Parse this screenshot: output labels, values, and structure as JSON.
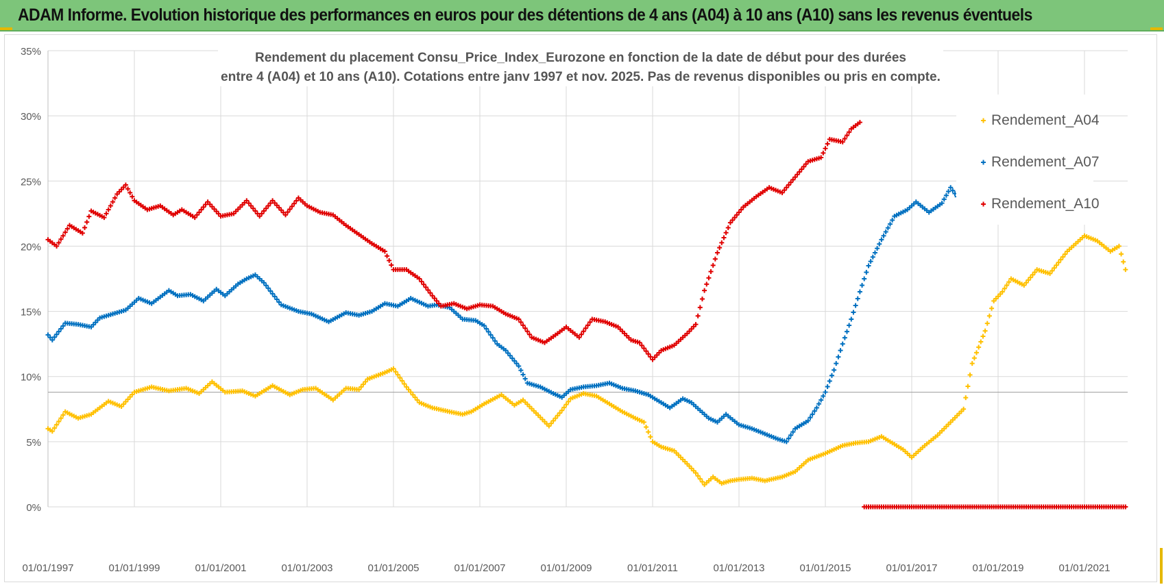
{
  "header": {
    "title": "ADAM Informe. Evolution historique des performances en euros pour des détentions de 4 ans (A04) à 10 ans (A10) sans les revenus éventuels",
    "background": "#7dc57a"
  },
  "chart_data": {
    "type": "scatter",
    "title_lines": [
      "Rendement du placement Consu_Price_Index_Eurozone en fonction de la date de début pour des durées",
      "entre 4 (A04) et 10 ans (A10). Cotations entre janv 1997 et nov. 2025. Pas de revenus disponibles ou pris en compte."
    ],
    "xlabel": "",
    "ylabel": "",
    "xlim": [
      1997.0,
      2022.0
    ],
    "ylim": [
      0,
      35
    ],
    "grid": true,
    "legend_position": "top-right",
    "x_ticks": [
      1997,
      1999,
      2001,
      2003,
      2005,
      2007,
      2009,
      2011,
      2013,
      2015,
      2017,
      2019,
      2021
    ],
    "x_tick_labels": [
      "01/01/1997",
      "01/01/1999",
      "01/01/2001",
      "01/01/2003",
      "01/01/2005",
      "01/01/2007",
      "01/01/2009",
      "01/01/2011",
      "01/01/2013",
      "01/01/2015",
      "01/01/2017",
      "01/01/2019",
      "01/01/2021"
    ],
    "y_ticks": [
      0,
      5,
      10,
      15,
      20,
      25,
      30,
      35
    ],
    "y_tick_labels": [
      "0%",
      "5%",
      "10%",
      "15%",
      "20%",
      "25%",
      "30%",
      "35%"
    ],
    "reference_line_y": 8.8,
    "series": [
      {
        "name": "Rendement_A04",
        "color": "#ffc000",
        "x": [
          1997.0,
          1997.1,
          1997.4,
          1997.7,
          1998.0,
          1998.4,
          1998.7,
          1999.0,
          1999.4,
          1999.8,
          2000.2,
          2000.5,
          2000.8,
          2001.1,
          2001.5,
          2001.8,
          2002.2,
          2002.6,
          2002.9,
          2003.2,
          2003.6,
          2003.9,
          2004.2,
          2004.4,
          2004.8,
          2005.0,
          2005.3,
          2005.6,
          2005.9,
          2006.3,
          2006.6,
          2006.8,
          2007.1,
          2007.5,
          2007.8,
          2008.0,
          2008.3,
          2008.6,
          2008.9,
          2009.1,
          2009.4,
          2009.7,
          2010.0,
          2010.3,
          2010.6,
          2010.8,
          2011.0,
          2011.2,
          2011.5,
          2011.8,
          2012.0,
          2012.2,
          2012.4,
          2012.6,
          2012.8,
          2013.0,
          2013.3,
          2013.6,
          2014.0,
          2014.3,
          2014.6,
          2015.0,
          2015.4,
          2015.7,
          2016.0,
          2016.3,
          2016.5,
          2016.8,
          2017.0,
          2017.3,
          2017.6,
          2017.9,
          2018.2,
          2018.4,
          2018.7,
          2018.9,
          2019.1,
          2019.3,
          2019.6,
          2019.9,
          2020.2,
          2020.6,
          2021.0,
          2021.3,
          2021.6,
          2021.8,
          2021.95
        ],
        "y": [
          6.0,
          5.8,
          7.3,
          6.8,
          7.1,
          8.1,
          7.7,
          8.8,
          9.2,
          8.9,
          9.1,
          8.7,
          9.6,
          8.8,
          8.9,
          8.5,
          9.3,
          8.6,
          9.0,
          9.1,
          8.2,
          9.1,
          9.0,
          9.8,
          10.3,
          10.6,
          9.2,
          8.0,
          7.6,
          7.3,
          7.1,
          7.3,
          7.9,
          8.6,
          7.8,
          8.2,
          7.2,
          6.2,
          7.4,
          8.3,
          8.7,
          8.5,
          7.9,
          7.3,
          6.8,
          6.5,
          5.0,
          4.6,
          4.3,
          3.3,
          2.6,
          1.7,
          2.3,
          1.8,
          2.0,
          2.1,
          2.2,
          2.0,
          2.3,
          2.7,
          3.6,
          4.1,
          4.7,
          4.9,
          5.0,
          5.4,
          5.0,
          4.4,
          3.8,
          4.7,
          5.5,
          6.5,
          7.5,
          11.0,
          13.5,
          15.8,
          16.5,
          17.5,
          17.0,
          18.2,
          17.9,
          19.6,
          20.8,
          20.4,
          19.6,
          20.0,
          18.2
        ]
      },
      {
        "name": "Rendement_A07",
        "color": "#0070c0",
        "x": [
          1997.0,
          1997.1,
          1997.4,
          1997.7,
          1998.0,
          1998.2,
          1998.5,
          1998.8,
          1999.1,
          1999.4,
          1999.8,
          2000.0,
          2000.3,
          2000.6,
          2000.9,
          2001.1,
          2001.4,
          2001.6,
          2001.8,
          2002.0,
          2002.4,
          2002.8,
          2003.1,
          2003.5,
          2003.9,
          2004.2,
          2004.5,
          2004.8,
          2005.1,
          2005.4,
          2005.8,
          2006.0,
          2006.3,
          2006.6,
          2006.9,
          2007.1,
          2007.4,
          2007.6,
          2007.9,
          2008.1,
          2008.4,
          2008.7,
          2008.9,
          2009.1,
          2009.4,
          2009.7,
          2010.0,
          2010.3,
          2010.6,
          2010.9,
          2011.1,
          2011.4,
          2011.7,
          2011.9,
          2012.1,
          2012.3,
          2012.5,
          2012.7,
          2013.0,
          2013.3,
          2013.6,
          2013.9,
          2014.1,
          2014.3,
          2014.6,
          2014.8,
          2015.0,
          2015.2,
          2015.4,
          2015.6,
          2015.8,
          2016.0,
          2016.3,
          2016.6,
          2016.9,
          2017.1,
          2017.4,
          2017.7,
          2017.9,
          2018.05,
          2018.15
        ],
        "y": [
          13.2,
          12.8,
          14.1,
          14.0,
          13.8,
          14.5,
          14.8,
          15.1,
          16.0,
          15.6,
          16.6,
          16.2,
          16.3,
          15.8,
          16.7,
          16.2,
          17.1,
          17.5,
          17.8,
          17.2,
          15.5,
          15.0,
          14.8,
          14.2,
          14.9,
          14.7,
          15.0,
          15.6,
          15.4,
          16.0,
          15.4,
          15.5,
          15.3,
          14.4,
          14.3,
          13.9,
          12.5,
          12.0,
          10.8,
          9.5,
          9.2,
          8.7,
          8.4,
          9.0,
          9.2,
          9.3,
          9.5,
          9.1,
          8.9,
          8.6,
          8.2,
          7.6,
          8.3,
          8.0,
          7.4,
          6.8,
          6.5,
          7.1,
          6.3,
          6.0,
          5.6,
          5.2,
          5.0,
          6.0,
          6.6,
          7.6,
          8.8,
          10.5,
          12.5,
          14.4,
          16.5,
          18.5,
          20.5,
          22.3,
          22.8,
          23.4,
          22.6,
          23.3,
          24.5,
          23.8,
          23.9
        ]
      },
      {
        "name": "Rendement_A10",
        "color": "#e00000",
        "x": [
          1997.0,
          1997.2,
          1997.5,
          1997.8,
          1998.0,
          1998.3,
          1998.6,
          1998.8,
          1999.0,
          1999.3,
          1999.6,
          1999.9,
          2000.1,
          2000.4,
          2000.7,
          2001.0,
          2001.3,
          2001.6,
          2001.9,
          2002.2,
          2002.5,
          2002.8,
          2003.0,
          2003.3,
          2003.6,
          2003.9,
          2004.2,
          2004.5,
          2004.8,
          2005.0,
          2005.3,
          2005.6,
          2005.9,
          2006.1,
          2006.4,
          2006.7,
          2007.0,
          2007.3,
          2007.6,
          2007.9,
          2008.2,
          2008.5,
          2008.8,
          2009.0,
          2009.3,
          2009.6,
          2009.9,
          2010.2,
          2010.5,
          2010.7,
          2011.0,
          2011.2,
          2011.5,
          2011.8,
          2012.0,
          2012.2,
          2012.5,
          2012.8,
          2013.1,
          2013.4,
          2013.7,
          2014.0,
          2014.3,
          2014.6,
          2014.9,
          2015.1,
          2015.4,
          2015.6,
          2015.8
        ],
        "y": [
          20.5,
          20.0,
          21.6,
          21.0,
          22.7,
          22.2,
          24.0,
          24.7,
          23.5,
          22.8,
          23.1,
          22.4,
          22.8,
          22.2,
          23.4,
          22.3,
          22.5,
          23.5,
          22.3,
          23.5,
          22.4,
          23.7,
          23.1,
          22.6,
          22.4,
          21.6,
          20.9,
          20.2,
          19.6,
          18.2,
          18.2,
          17.5,
          16.2,
          15.4,
          15.6,
          15.2,
          15.5,
          15.4,
          14.8,
          14.4,
          13.0,
          12.6,
          13.3,
          13.8,
          13.0,
          14.4,
          14.2,
          13.8,
          12.8,
          12.6,
          11.3,
          12.0,
          12.4,
          13.3,
          14.0,
          16.6,
          19.5,
          21.8,
          23.0,
          23.8,
          24.5,
          24.1,
          25.3,
          26.5,
          26.8,
          28.2,
          28.0,
          29.0,
          29.5
        ]
      },
      {
        "name": "Rendement_A10_zero",
        "legend": false,
        "color": "#e00000",
        "x": [
          2015.9,
          2016.3,
          2016.7,
          2017.1,
          2017.5,
          2017.9,
          2018.3,
          2018.7,
          2019.1,
          2019.5,
          2019.9,
          2020.3,
          2020.7,
          2021.1,
          2021.5,
          2021.95
        ],
        "y": [
          0,
          0,
          0,
          0,
          0,
          0,
          0,
          0,
          0,
          0,
          0,
          0,
          0,
          0,
          0,
          0
        ]
      }
    ]
  }
}
